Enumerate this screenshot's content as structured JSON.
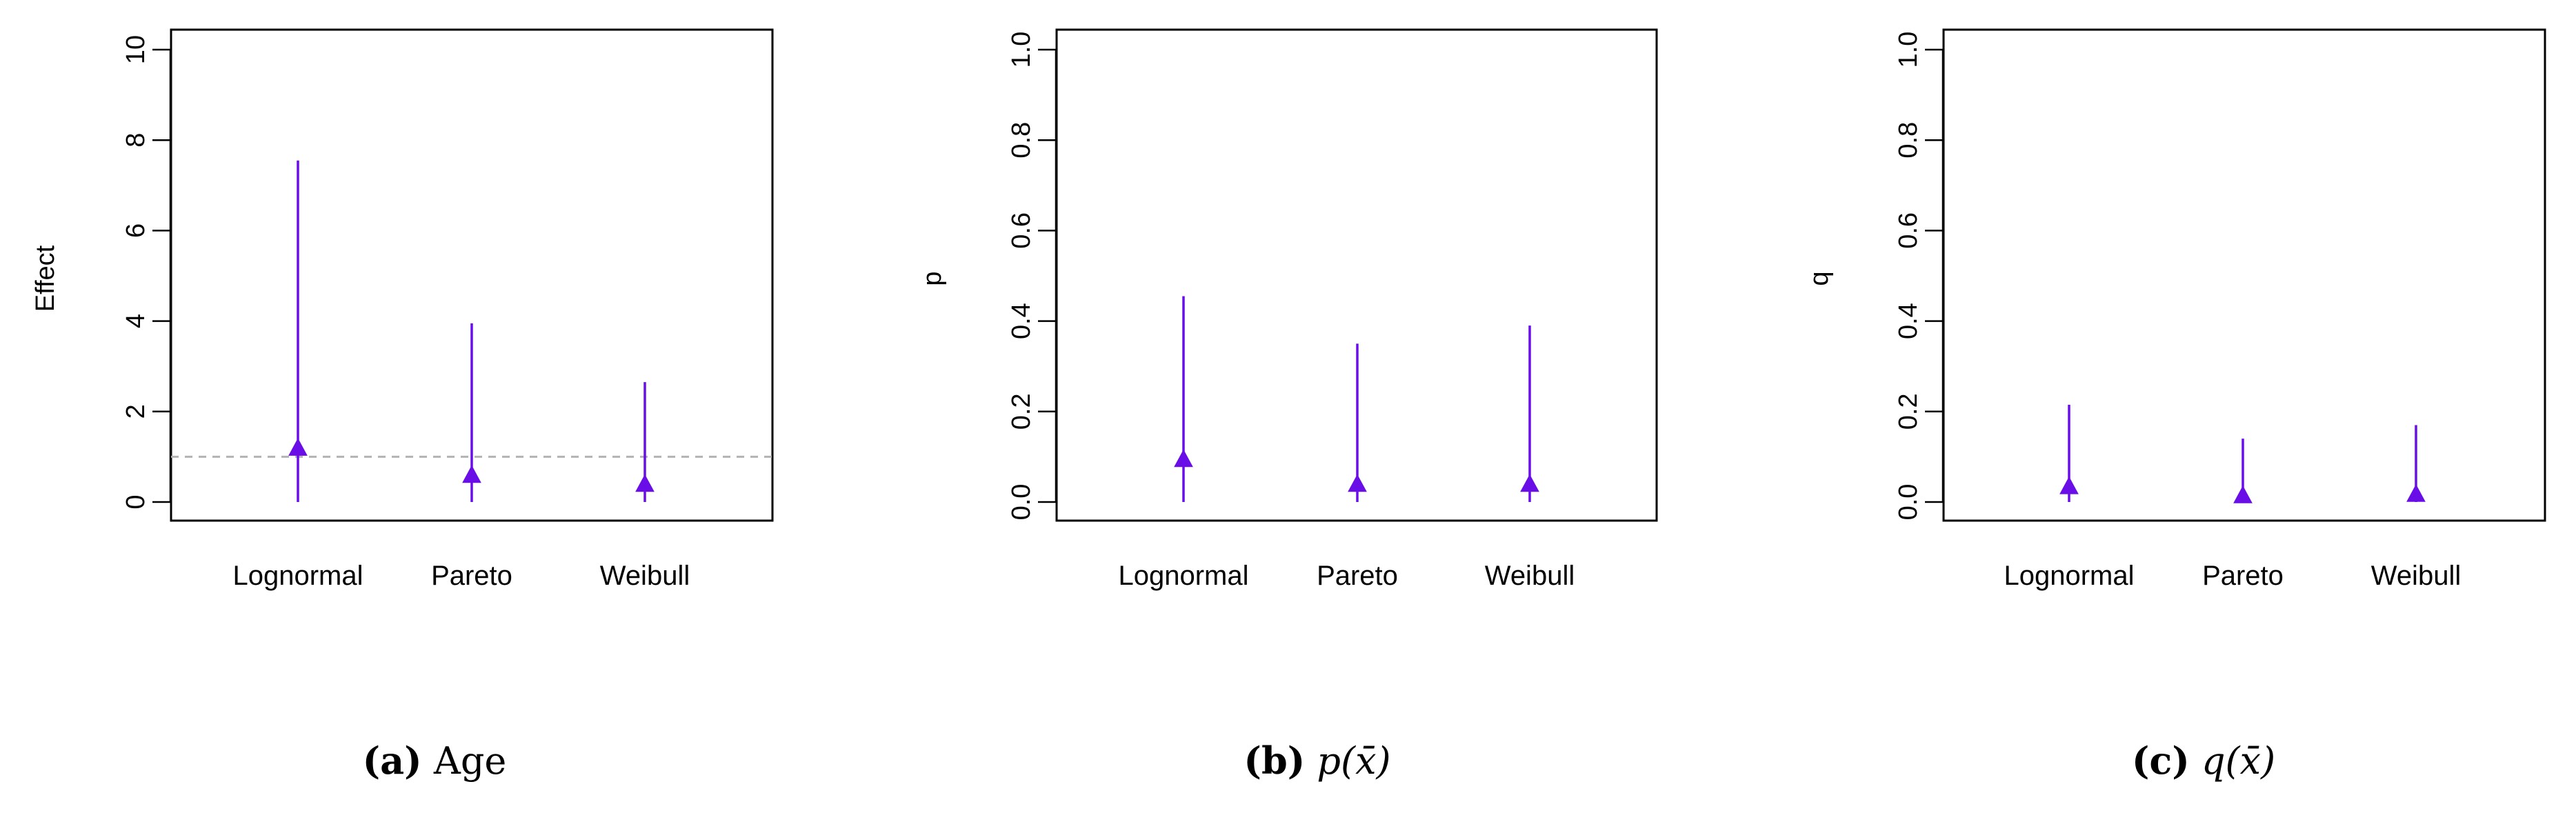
{
  "colors": {
    "series": "#6a0ee8",
    "reference_line": "#b3b3b3",
    "axes": "#000000"
  },
  "chart_data": [
    {
      "type": "interval",
      "ylabel": "Effect",
      "categories": [
        "Lognormal",
        "Pareto",
        "Weibull"
      ],
      "ylim": [
        0,
        10
      ],
      "yticks": [
        "0",
        "2",
        "4",
        "6",
        "8",
        "10"
      ],
      "ytick_values": [
        0,
        2,
        4,
        6,
        8,
        10
      ],
      "points": [
        1.2,
        0.6,
        0.4
      ],
      "lower": [
        0,
        0,
        0
      ],
      "upper": [
        7.55,
        3.95,
        2.65
      ],
      "reference_line": 1,
      "marker": "triangle-up",
      "caption_letter": "(a)",
      "caption_text": "Age"
    },
    {
      "type": "interval",
      "ylabel": "p",
      "categories": [
        "Lognormal",
        "Pareto",
        "Weibull"
      ],
      "ylim": [
        0,
        1
      ],
      "yticks": [
        "0.0",
        "0.2",
        "0.4",
        "0.6",
        "0.8",
        "1.0"
      ],
      "ytick_values": [
        0,
        0.2,
        0.4,
        0.6,
        0.8,
        1.0
      ],
      "points": [
        0.095,
        0.04,
        0.04
      ],
      "lower": [
        0,
        0,
        0
      ],
      "upper": [
        0.455,
        0.35,
        0.39
      ],
      "marker": "triangle-up",
      "caption_letter": "(b)",
      "caption_text": "p(x̄)"
    },
    {
      "type": "interval",
      "ylabel": "q",
      "categories": [
        "Lognormal",
        "Pareto",
        "Weibull"
      ],
      "ylim": [
        0,
        1
      ],
      "yticks": [
        "0.0",
        "0.2",
        "0.4",
        "0.6",
        "0.8",
        "1.0"
      ],
      "ytick_values": [
        0,
        0.2,
        0.4,
        0.6,
        0.8,
        1.0
      ],
      "points": [
        0.035,
        0.015,
        0.018
      ],
      "lower": [
        0,
        0,
        0
      ],
      "upper": [
        0.215,
        0.14,
        0.17
      ],
      "marker": "triangle-up",
      "caption_letter": "(c)",
      "caption_text": "q(x̄)"
    }
  ]
}
